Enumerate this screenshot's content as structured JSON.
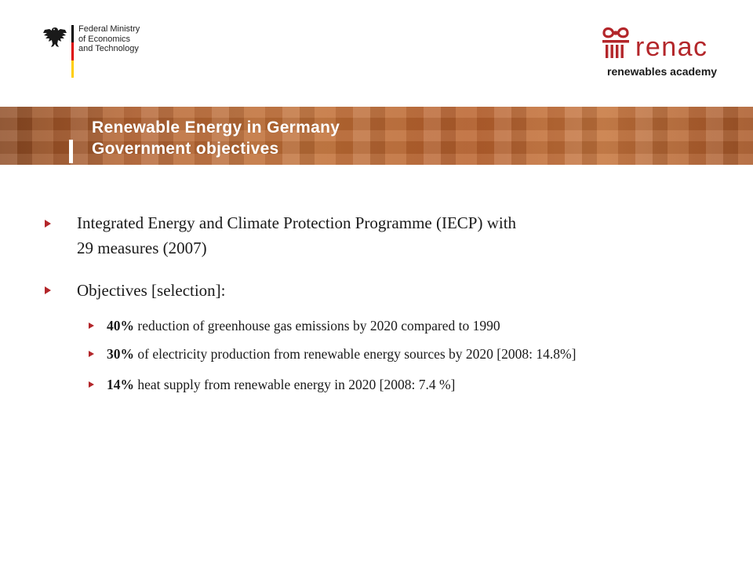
{
  "logos": {
    "bmwi_text": "Federal Ministry\nof Economics\nand Technology",
    "renac_word": "renac",
    "renac_sub": "renewables academy",
    "flag_colors": [
      "#000000",
      "#dd0000",
      "#ffce00"
    ],
    "renac_color": "#b3262a"
  },
  "title": {
    "line1": "Renewable Energy in Germany",
    "line2": "Government objectives"
  },
  "bullets": [
    {
      "line1": "Integrated Energy and Climate Protection Programme (IECP) with",
      "line2": "29 measures (2007)"
    },
    {
      "line1": "Objectives [selection]:"
    }
  ],
  "sub_bullets": [
    {
      "bold": "40%",
      "text": " reduction of greenhouse gas emissions by 2020 compared to 1990"
    },
    {
      "bold": "30%",
      "text": " of electricity production from renewable energy sources by 2020 [2008: 14.8%]"
    },
    {
      "bold": "14%",
      "text": " heat supply from renewable energy in 2020 [2008: 7.4 %]"
    }
  ],
  "icons": {
    "bullet": "triangle-right-icon",
    "eagle": "federal-eagle-icon",
    "pillar": "column-pillar-icon"
  }
}
